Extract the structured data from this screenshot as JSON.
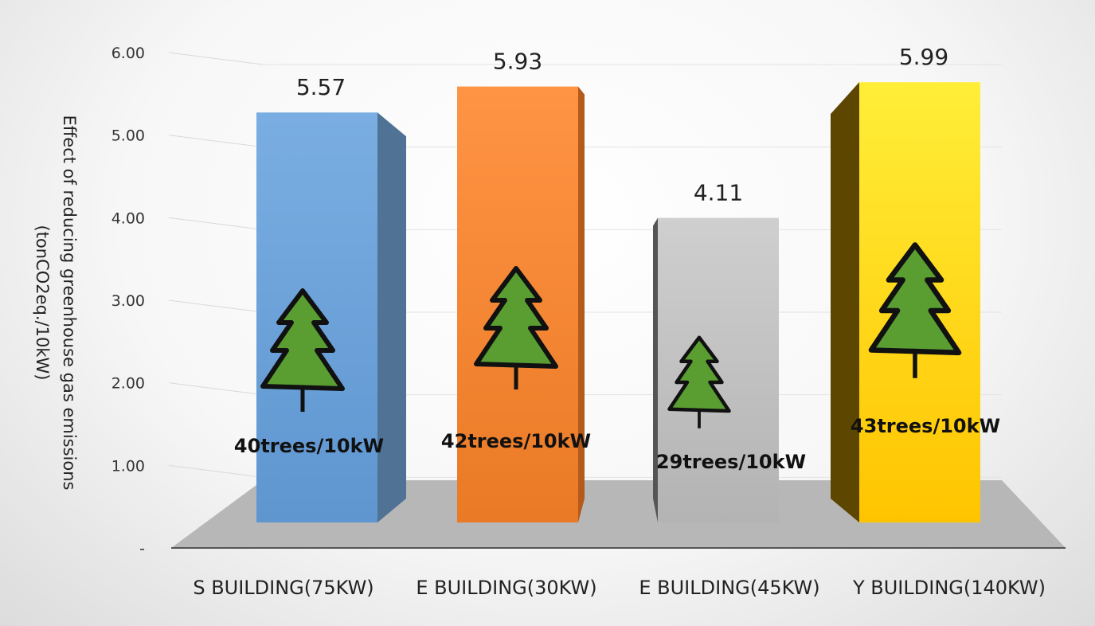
{
  "chart_data": {
    "type": "bar",
    "categories": [
      "S BUILDING(75KW)",
      "E BUILDING(30KW)",
      "E BUILDING(45KW)",
      "Y BUILDING(140KW)"
    ],
    "values": [
      5.57,
      5.93,
      4.11,
      5.99
    ],
    "value_labels": [
      "5.57",
      "5.93",
      "4.11",
      "5.99"
    ],
    "annotations": [
      "40trees/10kW",
      "42trees/10kW",
      "29trees/10kW",
      "43trees/10kW"
    ],
    "ylabel_lines": [
      "Effect of reducing greenhouse gas emissions",
      "(tonCO2eq./10kW)"
    ],
    "ylim": [
      0,
      6
    ],
    "yticks": [
      0,
      1,
      2,
      3,
      4,
      5,
      6
    ],
    "ytick_labels": [
      "-",
      "1.00",
      "2.00",
      "3.00",
      "4.00",
      "5.00",
      "6.00"
    ],
    "grid": true,
    "style": "3d-column",
    "colors": [
      "#6a9fd8",
      "#f2852f",
      "#bdbdbd",
      "#ffd21a"
    ],
    "icon": "tree-icon"
  }
}
